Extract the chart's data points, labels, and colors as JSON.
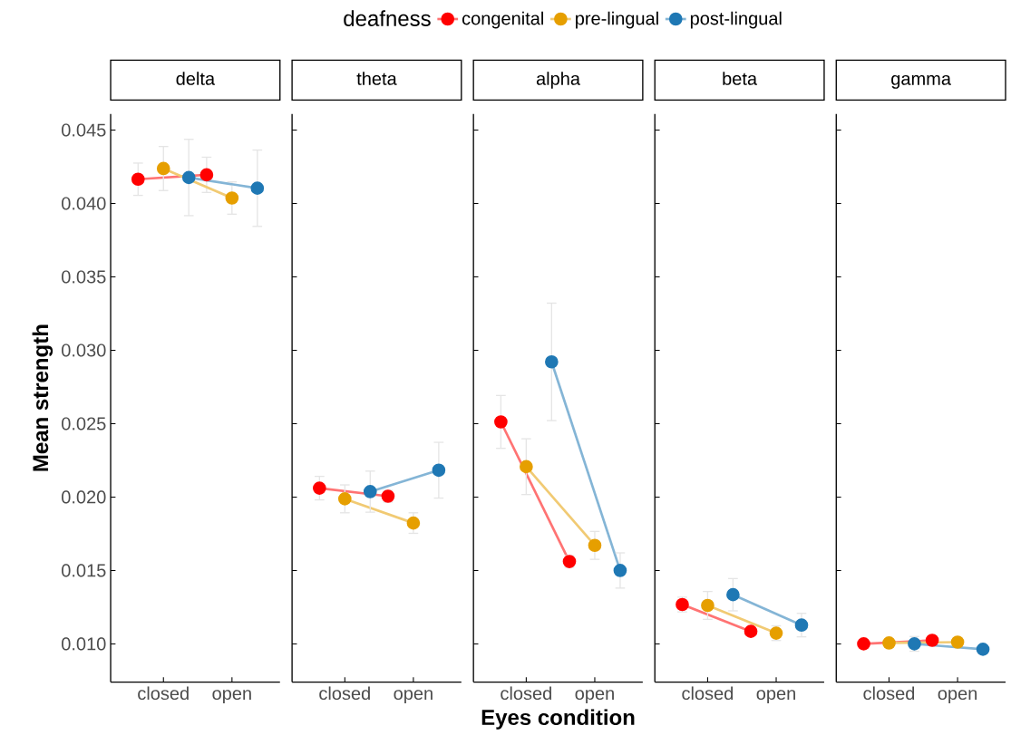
{
  "chart_data": [
    {
      "type": "line",
      "title": "delta",
      "ylabel": "Mean strength",
      "legend_title": "deafness",
      "legend": "top",
      "marker": "circle",
      "categories": [
        "closed",
        "open"
      ],
      "ylim": [
        0.0074,
        0.0461
      ],
      "yticks": [
        {
          "value": 0.01,
          "label": "0.010"
        },
        {
          "value": 0.015,
          "label": "0.015"
        },
        {
          "value": 0.02,
          "label": "0.020"
        },
        {
          "value": 0.025,
          "label": "0.025"
        },
        {
          "value": 0.03,
          "label": "0.030"
        },
        {
          "value": 0.035,
          "label": "0.035"
        },
        {
          "value": 0.04,
          "label": "0.040"
        },
        {
          "value": 0.045,
          "label": "0.045"
        }
      ],
      "series": [
        {
          "name": "congenital",
          "color": "#ff0000",
          "values": [
            0.04165,
            0.04195
          ],
          "errors": [
            0.0011,
            0.0012
          ]
        },
        {
          "name": "pre-lingual",
          "color": "#e69f00",
          "values": [
            0.04238,
            0.04037
          ],
          "errors": [
            0.0015,
            0.0011
          ]
        },
        {
          "name": "post-lingual",
          "color": "#1f78b4",
          "values": [
            0.04177,
            0.04104
          ],
          "errors": [
            0.0026,
            0.0026
          ]
        }
      ]
    },
    {
      "type": "line",
      "title": "theta",
      "marker": "circle",
      "tick_labels": "x",
      "categories": [
        "closed",
        "open"
      ],
      "ylim": [
        0.0074,
        0.0461
      ],
      "yticks": [
        0.01,
        0.015,
        0.02,
        0.025,
        0.03,
        0.035,
        0.04,
        0.045
      ],
      "series": [
        {
          "color": "#ff0000",
          "values": [
            0.02061,
            0.02006
          ],
          "errors": [
            0.0008,
            0.0004
          ]
        },
        {
          "color": "#e69f00",
          "values": [
            0.01988,
            0.01823
          ],
          "errors": [
            0.00095,
            0.0007
          ]
        },
        {
          "color": "#1f78b4",
          "values": [
            0.02037,
            0.02183
          ],
          "errors": [
            0.0014,
            0.0019
          ]
        }
      ]
    },
    {
      "type": "line",
      "title": "alpha",
      "xlabel": "Eyes condition",
      "marker": "circle",
      "tick_labels": "x",
      "categories": [
        "closed",
        "open"
      ],
      "ylim": [
        0.0074,
        0.0461
      ],
      "yticks": [
        0.01,
        0.015,
        0.02,
        0.025,
        0.03,
        0.035,
        0.04,
        0.045
      ],
      "series": [
        {
          "color": "#ff0000",
          "values": [
            0.02512,
            0.01561
          ],
          "errors": [
            0.0018,
            0.0004
          ]
        },
        {
          "color": "#e69f00",
          "values": [
            0.02207,
            0.01671
          ],
          "errors": [
            0.0019,
            0.00095
          ]
        },
        {
          "color": "#1f78b4",
          "values": [
            0.02921,
            0.015
          ],
          "errors": [
            0.004,
            0.0012
          ]
        }
      ]
    },
    {
      "type": "line",
      "title": "beta",
      "marker": "circle",
      "tick_labels": "x",
      "categories": [
        "closed",
        "open"
      ],
      "ylim": [
        0.0074,
        0.0461
      ],
      "yticks": [
        0.01,
        0.015,
        0.02,
        0.025,
        0.03,
        0.035,
        0.04,
        0.045
      ],
      "series": [
        {
          "color": "#ff0000",
          "values": [
            0.01268,
            0.01085
          ],
          "errors": [
            0.0005,
            null
          ]
        },
        {
          "color": "#e69f00",
          "values": [
            0.01262,
            0.01073
          ],
          "errors": [
            0.00095,
            0.0005
          ]
        },
        {
          "color": "#1f78b4",
          "values": [
            0.01335,
            0.01128
          ],
          "errors": [
            0.0011,
            0.0008
          ]
        }
      ]
    },
    {
      "type": "line",
      "title": "gamma",
      "marker": "circle",
      "tick_labels": "x",
      "categories": [
        "closed",
        "open"
      ],
      "ylim": [
        0.0074,
        0.0461
      ],
      "yticks": [
        0.01,
        0.015,
        0.02,
        0.025,
        0.03,
        0.035,
        0.04,
        0.045
      ],
      "series": [
        {
          "color": "#ff0000",
          "values": [
            0.01,
            0.01024
          ]
        },
        {
          "color": "#e69f00",
          "values": [
            0.01006,
            0.01012
          ]
        },
        {
          "color": "#1f78b4",
          "values": [
            0.01,
            0.00963
          ],
          "errors": [
            0.0005,
            null
          ]
        }
      ]
    }
  ]
}
